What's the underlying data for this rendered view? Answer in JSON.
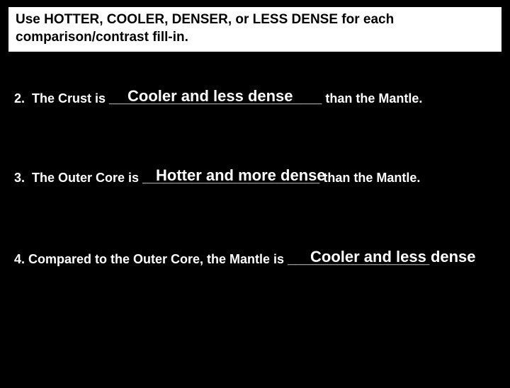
{
  "instruction": "Use HOTTER, COOLER, DENSER, or LESS DENSE for each comparison/contrast fill-in.",
  "questions": {
    "q2": {
      "prefix": "2.  The Crust is ",
      "blank": "______________________________",
      "suffix": " than the Mantle.",
      "answer": "Cooler and less dense"
    },
    "q3": {
      "prefix": "3.  The Outer Core is ",
      "blank": "_________________________",
      "suffix": " than the Mantle.",
      "answer": "Hotter and more dense"
    },
    "q4": {
      "prefix": "4. Compared to the Outer Core, the Mantle is ",
      "blank": "____________________",
      "suffix": "",
      "answer": "Cooler and less dense"
    }
  },
  "colors": {
    "background": "#000000",
    "box_background": "#ffffff",
    "text_light": "#ffffff",
    "text_dark": "#000000"
  }
}
